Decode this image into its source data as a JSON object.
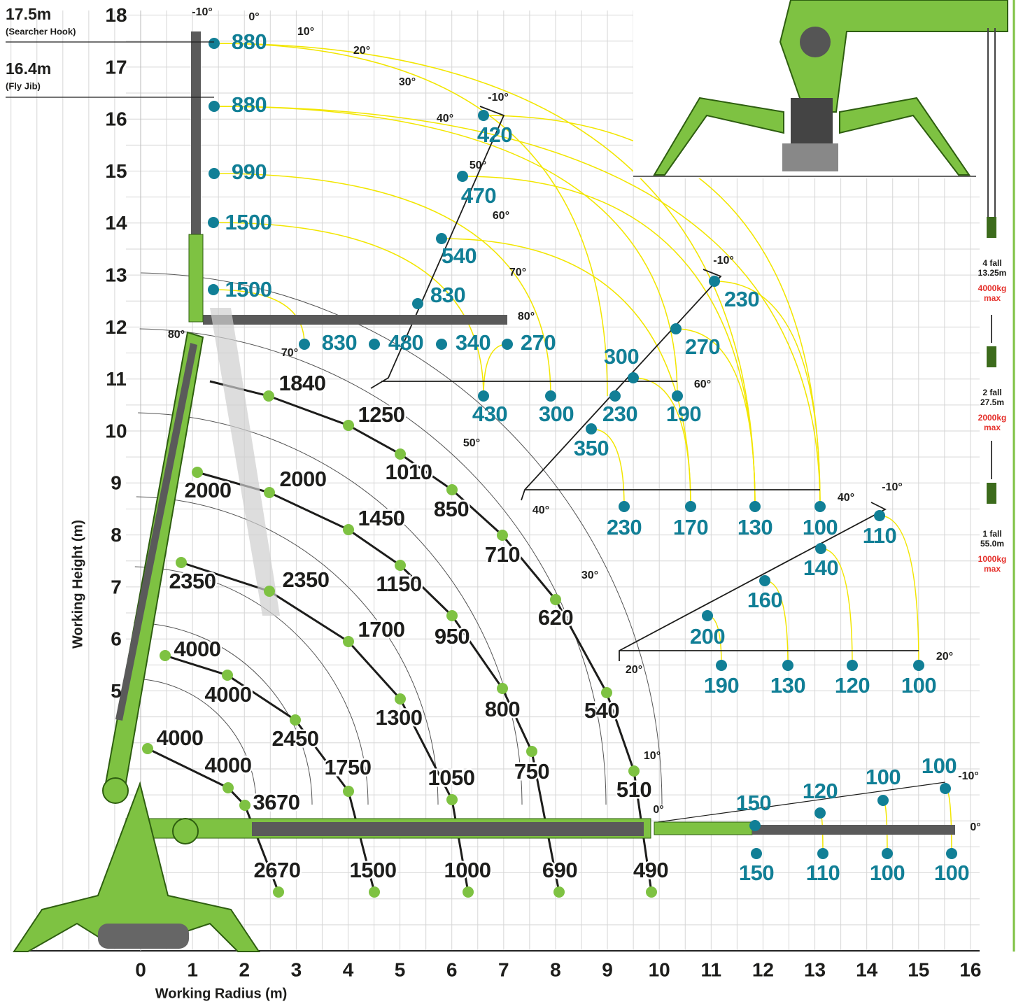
{
  "boom_lengths": [
    {
      "length": "17.5m",
      "note": "(Searcher Hook)"
    },
    {
      "length": "16.4m",
      "note": "(Fly Jib)"
    }
  ],
  "axes": {
    "y_label": "Working Height (m)",
    "x_label": "Working Radius (m)",
    "x_ticks": [
      0,
      1,
      2,
      3,
      4,
      5,
      6,
      7,
      8,
      9,
      10,
      11,
      12,
      13,
      14,
      15,
      16
    ],
    "y_ticks": [
      18,
      17,
      16,
      15,
      14,
      13,
      12,
      11,
      10,
      9,
      8,
      7,
      6,
      5
    ]
  },
  "angle_labels": [
    "-10°",
    "0°",
    "10°",
    "20°",
    "30°",
    "40°",
    "-10°",
    "50°",
    "60°",
    "70°",
    "80°",
    "80°",
    "70°",
    "50°",
    "40°",
    "30°",
    "20°",
    "10°",
    "0°",
    "-10°",
    "60°",
    "40°",
    "-10°",
    "20°",
    "0°",
    "-10°"
  ],
  "jib_capacities": [
    "880",
    "880",
    "990",
    "1500",
    "1500",
    "830",
    "480",
    "340",
    "270",
    "420",
    "470",
    "540",
    "830",
    "430",
    "300",
    "230",
    "190",
    "230",
    "270",
    "300",
    "350",
    "230",
    "170",
    "130",
    "100",
    "110",
    "140",
    "160",
    "200",
    "190",
    "130",
    "120",
    "100",
    "100",
    "100",
    "120",
    "150",
    "150",
    "110",
    "100",
    "100"
  ],
  "main_capacities": [
    "2670",
    "1500",
    "1000",
    "690",
    "490",
    "1840",
    "1250",
    "1010",
    "850",
    "710",
    "620",
    "540",
    "510",
    "2000",
    "2000",
    "1450",
    "1150",
    "950",
    "800",
    "750",
    "1050",
    "2350",
    "2350",
    "1700",
    "1300",
    "1750",
    "4000",
    "4000",
    "2450",
    "4000",
    "4000",
    "3670"
  ],
  "hook_blocks": [
    {
      "falls": "4 fall",
      "length": "13.25m",
      "capacity": "4000kg",
      "note": "max"
    },
    {
      "falls": "2 fall",
      "length": "27.5m",
      "capacity": "2000kg",
      "note": "max"
    },
    {
      "falls": "1 fall",
      "length": "55.0m",
      "capacity": "1000kg",
      "note": "max"
    }
  ]
}
